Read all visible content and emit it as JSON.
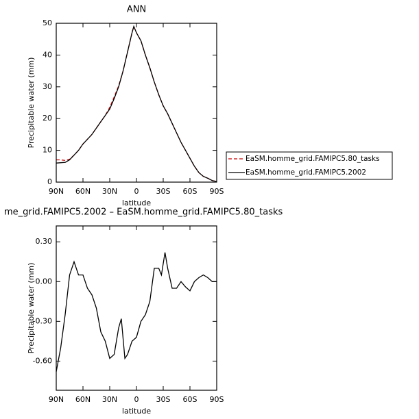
{
  "chart_data": [
    {
      "type": "line",
      "title": "ANN",
      "xlabel": "latitude",
      "ylabel": "Precipitable water (mm)",
      "x": [
        90,
        85,
        80,
        75,
        70,
        65,
        60,
        55,
        50,
        45,
        40,
        35,
        30,
        25,
        20,
        15,
        10,
        5,
        3,
        0,
        -5,
        -10,
        -15,
        -20,
        -25,
        -30,
        -35,
        -40,
        -45,
        -50,
        -55,
        -60,
        -65,
        -70,
        -75,
        -80,
        -85,
        -90
      ],
      "series": [
        {
          "name": "EaSM.homme_grid.FAMIPC5.80_tasks",
          "color": "#cc0000",
          "style": "dashed",
          "values": [
            7,
            7,
            6.8,
            7.2,
            8.5,
            10,
            12,
            13.5,
            15,
            17,
            19,
            21,
            23.5,
            26.8,
            30.3,
            35,
            41,
            47,
            49,
            47,
            44.5,
            40,
            36,
            31.5,
            27.5,
            24,
            21.5,
            18.5,
            15.5,
            12.5,
            10,
            7.5,
            5,
            3,
            1.8,
            1.2,
            0.5,
            0.2
          ]
        },
        {
          "name": "EaSM.homme_grid.FAMIPC5.2002",
          "color": "#000000",
          "style": "solid",
          "values": [
            6,
            6.1,
            6.2,
            7,
            8.5,
            10,
            12,
            13.5,
            15,
            17,
            19,
            21,
            23,
            26.3,
            30,
            35,
            41,
            47,
            49,
            47,
            44.5,
            40,
            36,
            31.5,
            27.5,
            24,
            21.5,
            18.5,
            15.5,
            12.5,
            10,
            7.5,
            5,
            3,
            1.8,
            1.2,
            0.5,
            0.2
          ]
        }
      ],
      "xlim": [
        90,
        -90
      ],
      "ylim": [
        0,
        50
      ],
      "xticks": [
        {
          "value": 90,
          "label": "90N"
        },
        {
          "value": 60,
          "label": "60N"
        },
        {
          "value": 30,
          "label": "30N"
        },
        0,
        {
          "value": -30,
          "label": "30S"
        },
        {
          "value": -60,
          "label": "60S"
        },
        {
          "value": -90,
          "label": "90S"
        }
      ],
      "yticks": [
        0,
        10,
        20,
        30,
        40,
        50
      ],
      "legend": "outside-right"
    },
    {
      "type": "line",
      "title": "me_grid.FAMIPC5.2002 – EaSM.homme_grid.FAMIPC5.80_tasks",
      "xlabel": "latitude",
      "ylabel": "Precipitable water (mm)",
      "x": [
        90,
        85,
        80,
        75,
        70,
        65,
        60,
        55,
        50,
        45,
        40,
        35,
        30,
        25,
        20,
        17,
        13,
        10,
        5,
        0,
        -5,
        -10,
        -15,
        -20,
        -25,
        -28,
        -32,
        -35,
        -40,
        -45,
        -50,
        -55,
        -60,
        -65,
        -70,
        -75,
        -80,
        -85,
        -90
      ],
      "series": [
        {
          "color": "#000000",
          "style": "solid",
          "values": [
            -0.68,
            -0.5,
            -0.25,
            0.05,
            0.15,
            0.05,
            0.05,
            -0.05,
            -0.1,
            -0.2,
            -0.38,
            -0.45,
            -0.58,
            -0.55,
            -0.35,
            -0.28,
            -0.58,
            -0.55,
            -0.45,
            -0.42,
            -0.3,
            -0.25,
            -0.15,
            0.1,
            0.1,
            0.05,
            0.22,
            0.1,
            -0.05,
            -0.05,
            0.0,
            -0.04,
            -0.07,
            0.0,
            0.03,
            0.05,
            0.03,
            0.0,
            0.0
          ]
        }
      ],
      "xlim": [
        90,
        -90
      ],
      "ylim": [
        -0.82,
        0.42
      ],
      "xticks": [
        {
          "value": 90,
          "label": "90N"
        },
        {
          "value": 60,
          "label": "60N"
        },
        {
          "value": 30,
          "label": "30N"
        },
        0,
        {
          "value": -30,
          "label": "30S"
        },
        {
          "value": -60,
          "label": "60S"
        },
        {
          "value": -90,
          "label": "90S"
        }
      ],
      "yticks": [
        {
          "value": 0.3,
          "label": "0.30"
        },
        {
          "value": 0,
          "label": "0.00"
        },
        {
          "value": -0.3,
          "label": "-0.30"
        },
        {
          "value": -0.6,
          "label": "-0.60"
        }
      ]
    }
  ]
}
